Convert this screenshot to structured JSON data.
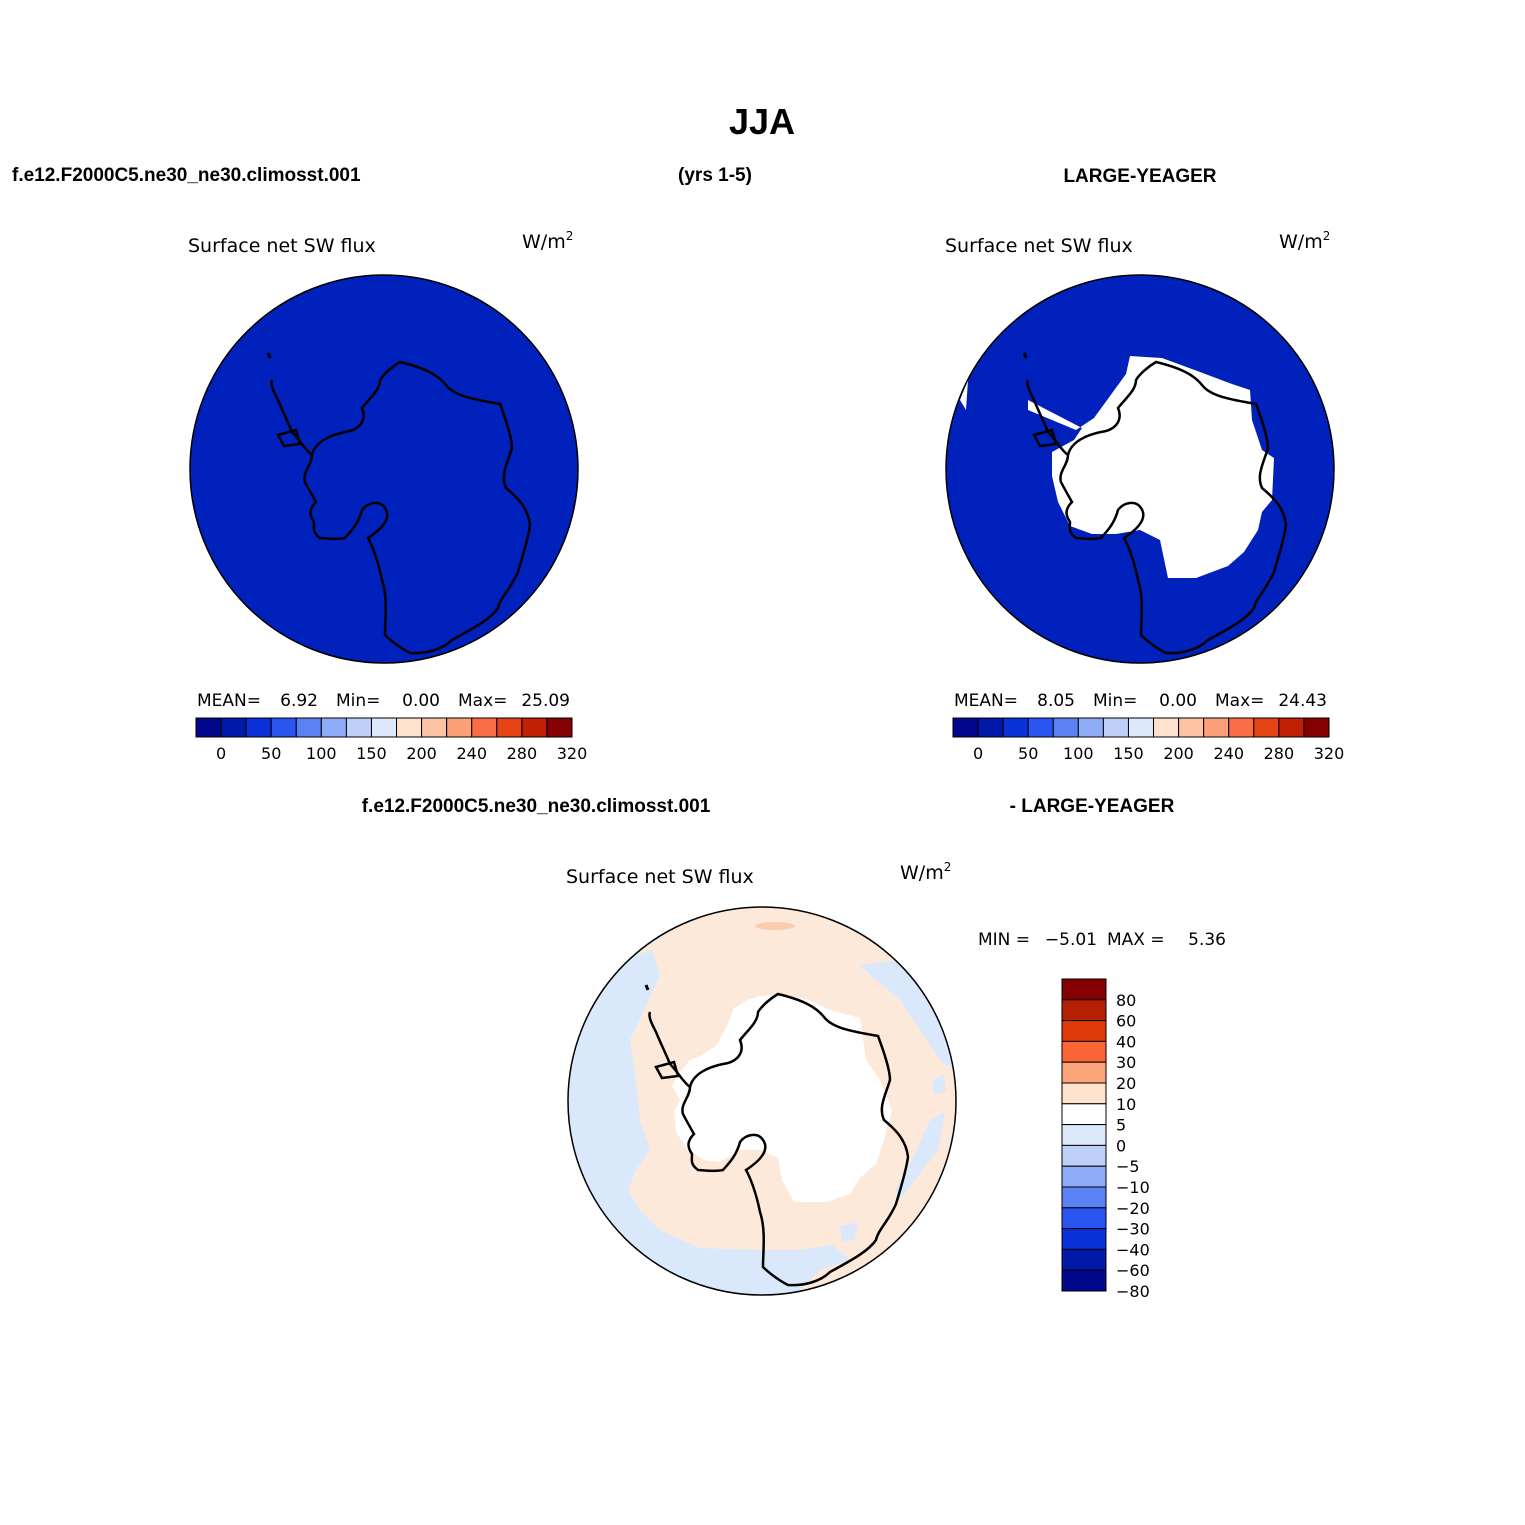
{
  "title": "JJA",
  "header": {
    "case_name": "f.e12.F2000C5.ne30_ne30.climosst.001",
    "years": "(yrs 1-5)",
    "obs_name": "LARGE-YEAGER"
  },
  "panels": [
    {
      "variable": "Surface net SW flux",
      "units_base": "W/m",
      "units_exp": "2",
      "stats": {
        "mean_label": "MEAN=",
        "mean": "6.92",
        "min_label": "Min=",
        "min": "0.00",
        "max_label": "Max=",
        "max": "25.09"
      }
    },
    {
      "variable": "Surface net SW flux",
      "units_base": "W/m",
      "units_exp": "2",
      "stats": {
        "mean_label": "MEAN=",
        "mean": "8.05",
        "min_label": "Min=",
        "min": "0.00",
        "max_label": "Max=",
        "max": "24.43"
      }
    }
  ],
  "diff": {
    "title_left": "f.e12.F2000C5.ne30_ne30.climosst.001",
    "title_right": "- LARGE-YEAGER",
    "variable": "Surface net SW flux",
    "units_base": "W/m",
    "units_exp": "2",
    "stats": {
      "min_label": "MIN =",
      "min": "−5.01",
      "max_label": "MAX =",
      "max": "5.36"
    }
  },
  "colorbar_top": {
    "colors": [
      "#00078c",
      "#0019a8",
      "#0a32d8",
      "#2a55f0",
      "#5b82f5",
      "#8eacf7",
      "#bfd0f8",
      "#dde9fb",
      "#fde3cd",
      "#fcc4a3",
      "#fca07a",
      "#fb6e45",
      "#e64415",
      "#c02004",
      "#850000"
    ],
    "labels": [
      "0",
      "50",
      "100",
      "150",
      "200",
      "240",
      "280",
      "320"
    ]
  },
  "colorbar_diff": {
    "colors": [
      "#850000",
      "#b51f04",
      "#e03a08",
      "#fb6435",
      "#fca57c",
      "#fde3cd",
      "#ffffff",
      "#dde9fb",
      "#bfd0f8",
      "#8eacf7",
      "#5b82f5",
      "#2a55f0",
      "#0a32d8",
      "#0019a8",
      "#00078c"
    ],
    "labels": [
      "80",
      "60",
      "40",
      "30",
      "20",
      "10",
      "5",
      "0",
      "−5",
      "−10",
      "−20",
      "−30",
      "−40",
      "−60",
      "−80"
    ]
  },
  "map_colors": {
    "ocean_model": "#0021bb",
    "land": "#ffffff",
    "diff_positive": "#fde9d9",
    "diff_negative": "#d9e9fb",
    "diff_hotspot": "#fbcbb0"
  }
}
